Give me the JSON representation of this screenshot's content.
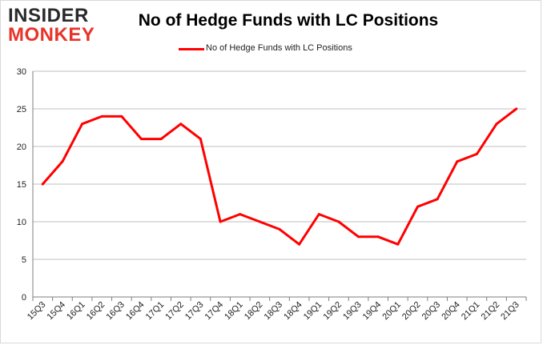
{
  "logo": {
    "line1": "INSIDER",
    "line2": "MONKEY"
  },
  "colors": {
    "series": "#ff0000",
    "grid": "#bfbfbf",
    "axis": "#7f7f7f"
  },
  "chart_data": {
    "type": "line",
    "title": "No of Hedge Funds with LC Positions",
    "xlabel": "",
    "ylabel": "",
    "ylim": [
      0,
      30
    ],
    "yticks": [
      0,
      5,
      10,
      15,
      20,
      25,
      30
    ],
    "categories": [
      "15Q3",
      "15Q4",
      "16Q1",
      "16Q2",
      "16Q3",
      "16Q4",
      "17Q1",
      "17Q2",
      "17Q3",
      "17Q4",
      "18Q1",
      "18Q2",
      "18Q3",
      "18Q4",
      "19Q1",
      "19Q2",
      "19Q3",
      "19Q4",
      "20Q1",
      "20Q2",
      "20Q3",
      "20Q4",
      "21Q1",
      "21Q2",
      "21Q3"
    ],
    "series": [
      {
        "name": "No of Hedge Funds with LC Positions",
        "values": [
          15,
          18,
          23,
          24,
          24,
          21,
          21,
          23,
          21,
          10,
          11,
          10,
          9,
          7,
          11,
          10,
          8,
          8,
          7,
          12,
          13,
          18,
          19,
          23,
          25
        ]
      }
    ],
    "legend": "top-center",
    "grid": true
  }
}
